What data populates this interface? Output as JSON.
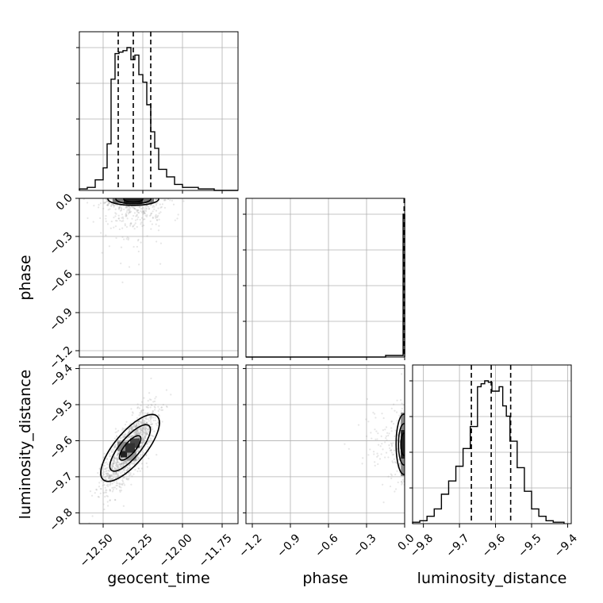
{
  "chart_data": {
    "type": "corner",
    "parameters": [
      "geocent_time",
      "phase",
      "luminosity_distance"
    ],
    "axis_labels": {
      "geocent_time": "geocent_time",
      "phase": "phase",
      "luminosity_distance": "luminosity_distance"
    },
    "ranges": {
      "geocent_time": [
        -12.65,
        -11.65
      ],
      "phase": [
        -1.25,
        0.0
      ],
      "luminosity_distance": [
        -9.83,
        -9.39
      ]
    },
    "ticks": {
      "geocent_time": [
        -12.5,
        -12.25,
        -12.0,
        -11.75
      ],
      "phase": [
        -1.2,
        -0.9,
        -0.6,
        -0.3,
        0.0
      ],
      "luminosity_distance": [
        -9.8,
        -9.7,
        -9.6,
        -9.5,
        -9.4
      ]
    },
    "tick_labels": {
      "geocent_time": [
        "−12.50",
        "−12.25",
        "−12.00",
        "−11.75"
      ],
      "phase": [
        "−1.2",
        "−0.9",
        "−0.6",
        "−0.3",
        "0.0"
      ],
      "luminosity_distance": [
        "−9.8",
        "−9.7",
        "−9.6",
        "−9.5",
        "−9.4"
      ]
    },
    "grid": true,
    "marginals": {
      "geocent_time": {
        "bin_edges": [
          -12.65,
          -12.6,
          -12.55,
          -12.5,
          -12.475,
          -12.45,
          -12.425,
          -12.4,
          -12.375,
          -12.35,
          -12.325,
          -12.3,
          -12.275,
          -12.25,
          -12.225,
          -12.2,
          -12.175,
          -12.15,
          -12.1,
          -12.05,
          -12.0,
          -11.9,
          -11.8,
          -11.65
        ],
        "counts": [
          1,
          2,
          7,
          15,
          31,
          74,
          91,
          92,
          93,
          95,
          87,
          90,
          77,
          72,
          57,
          39,
          28,
          14,
          9,
          4,
          2,
          1,
          0
        ],
        "quantiles": [
          -12.405,
          -12.31,
          -12.2
        ]
      },
      "phase": {
        "bin_edges": [
          -1.25,
          -0.15,
          -0.1,
          -0.05,
          -0.012,
          0.0
        ],
        "counts": [
          0,
          1,
          1,
          1,
          90
        ],
        "quantiles": [
          -0.004,
          -0.002,
          -0.001
        ]
      },
      "luminosity_distance": {
        "bin_edges": [
          -9.83,
          -9.81,
          -9.79,
          -9.77,
          -9.75,
          -9.73,
          -9.71,
          -9.69,
          -9.67,
          -9.65,
          -9.64,
          -9.63,
          -9.62,
          -9.61,
          -9.6,
          -9.59,
          -9.58,
          -9.57,
          -9.56,
          -9.54,
          -9.52,
          -9.5,
          -9.48,
          -9.46,
          -9.44,
          -9.41
        ],
        "counts": [
          1,
          2,
          5,
          10,
          20,
          29,
          39,
          51,
          66,
          93,
          95,
          97,
          96,
          90,
          90,
          93,
          80,
          73,
          56,
          38,
          22,
          10,
          5,
          2,
          1
        ],
        "quantiles": [
          -9.667,
          -9.612,
          -9.558
        ]
      }
    },
    "joint": [
      {
        "x": "geocent_time",
        "y": "phase",
        "peak": [
          -12.31,
          -0.005
        ],
        "contour_levels": 3
      },
      {
        "x": "geocent_time",
        "y": "luminosity_distance",
        "peak": [
          -12.33,
          -9.62
        ],
        "correlation": 0.75,
        "contour_levels": 3
      },
      {
        "x": "phase",
        "y": "luminosity_distance",
        "peak": [
          -0.005,
          -9.61
        ],
        "contour_levels": 3
      }
    ]
  }
}
